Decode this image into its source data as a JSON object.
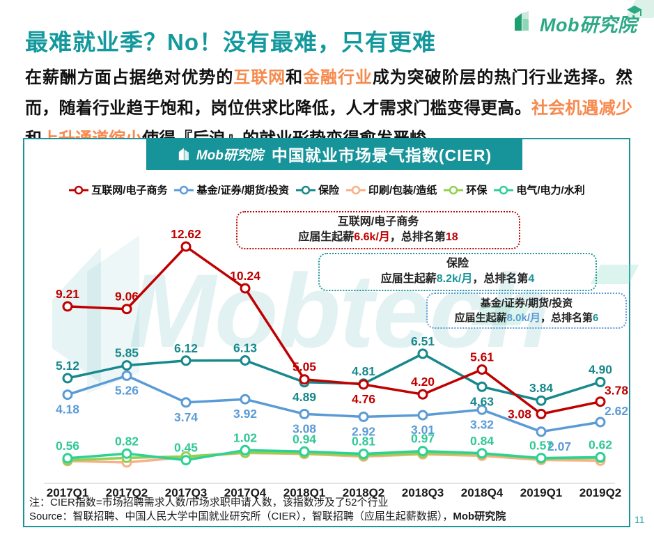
{
  "page": {
    "title": "最难就业季？No！没有最难，只有更难",
    "title_color": "#13999D",
    "accent_orange": "#F7894D",
    "page_number": "11"
  },
  "logo": {
    "text": "Mob研究院"
  },
  "intro": {
    "segments": [
      {
        "t": "在薪酬方面占据绝对优势的",
        "c": "k"
      },
      {
        "t": "互联网",
        "c": "o"
      },
      {
        "t": "和",
        "c": "k"
      },
      {
        "t": "金融行业",
        "c": "o"
      },
      {
        "t": "成为突破阶层的热门行业选择。然而，随着行业趋于饱和，岗位供求比降低，人才需求门槛变得更高。",
        "c": "k"
      },
      {
        "t": "社会机遇减少",
        "c": "o"
      },
      {
        "t": "和",
        "c": "k"
      },
      {
        "t": "上升通道缩小",
        "c": "o"
      },
      {
        "t": "使得『后浪』的就业形势变得愈发严峻",
        "c": "k"
      }
    ]
  },
  "panel": {
    "banner_title": "中国就业市场景气指数(CIER)",
    "banner_bg": "#17949A",
    "border_color": "#1B9398",
    "watermark": "Mobtech"
  },
  "annotations": [
    {
      "title": "互联网/电子商务",
      "prefix": "应届生起薪",
      "salary": "6.6k/月",
      "mid": "，总排名第",
      "rank": "18",
      "border": "#C00000",
      "salary_color": "#C00000",
      "rank_color": "#C00000"
    },
    {
      "title": "保险",
      "prefix": "应届生起薪",
      "salary": "8.2k/月",
      "mid": "，总排名第",
      "rank": "4",
      "border": "#1B9398",
      "salary_color": "#1B9398",
      "rank_color": "#1B9398"
    },
    {
      "title": "基金/证券/期货/投资",
      "prefix": "应届生起薪",
      "salary": "8.0k/月",
      "mid": "，总排名第",
      "rank": "6",
      "border": "#5B9BD5",
      "salary_color": "#5B9BD5",
      "rank_color": "#1B9398"
    }
  ],
  "chart_data": {
    "type": "line",
    "title": "中国就业市场景气指数(CIER)",
    "xlabel": "",
    "ylabel": "CIER指数",
    "ylim": [
      0,
      13.5
    ],
    "grid": false,
    "legend_position": "top",
    "categories": [
      "2017Q1",
      "2017Q2",
      "2017Q3",
      "2017Q4",
      "2018Q1",
      "2018Q2",
      "2018Q3",
      "2018Q4",
      "2019Q1",
      "2019Q2"
    ],
    "series": [
      {
        "name": "互联网/电子商务",
        "color": "#C00000",
        "values": [
          9.21,
          9.06,
          12.62,
          10.24,
          5.05,
          4.76,
          4.2,
          5.61,
          3.08,
          3.78
        ],
        "labeled": true,
        "label_pos": [
          "t",
          "t",
          "t",
          "t",
          "t",
          "b",
          "t",
          "t",
          "l",
          "tr"
        ]
      },
      {
        "name": "基金/证券/期货/投资",
        "color": "#5B9BD5",
        "values": [
          4.18,
          5.26,
          3.74,
          3.92,
          3.08,
          2.92,
          3.01,
          3.32,
          2.07,
          2.62
        ],
        "labeled": true,
        "label_pos": [
          "b",
          "b",
          "b",
          "b",
          "b",
          "b",
          "b",
          "b",
          "br",
          "tr"
        ]
      },
      {
        "name": "保险",
        "color": "#17888C",
        "values": [
          5.12,
          5.85,
          6.12,
          6.13,
          4.89,
          4.81,
          6.51,
          4.63,
          3.84,
          4.9
        ],
        "labeled": true,
        "label_pos": [
          "t",
          "t",
          "t",
          "t",
          "b",
          "t",
          "t",
          "b",
          "t",
          "t"
        ]
      },
      {
        "name": "印刷/包装/造纸",
        "color": "#F8B088",
        "values": [
          0.4,
          0.32,
          0.62,
          0.86,
          0.8,
          0.66,
          0.78,
          0.7,
          0.46,
          0.42
        ],
        "labeled": false
      },
      {
        "name": "环保",
        "color": "#92D050",
        "values": [
          0.44,
          0.58,
          0.66,
          0.88,
          0.84,
          0.72,
          0.85,
          0.8,
          0.54,
          0.58
        ],
        "labeled": false
      },
      {
        "name": "电气/电力/水利",
        "color": "#2FD096",
        "label_color": "#2FC896",
        "values": [
          0.56,
          0.82,
          0.45,
          1.02,
          0.94,
          0.81,
          0.97,
          0.84,
          0.57,
          0.62
        ],
        "labeled": true,
        "label_pos": [
          "t",
          "t",
          "t",
          "t",
          "t",
          "t",
          "t",
          "t",
          "t",
          "t"
        ]
      }
    ],
    "draw_order": [
      3,
      4,
      5,
      1,
      2,
      0
    ]
  },
  "notes": {
    "line1": "注：CIER指数=市场招聘需求人数/市场求职申请人数，该指数涉及了52个行业",
    "line2_prefix": "Source：智联招聘、中国人民大学中国就业研究所（CIER），智联招聘（应届生起薪数据），",
    "line2_bold": "Mob研究院"
  }
}
